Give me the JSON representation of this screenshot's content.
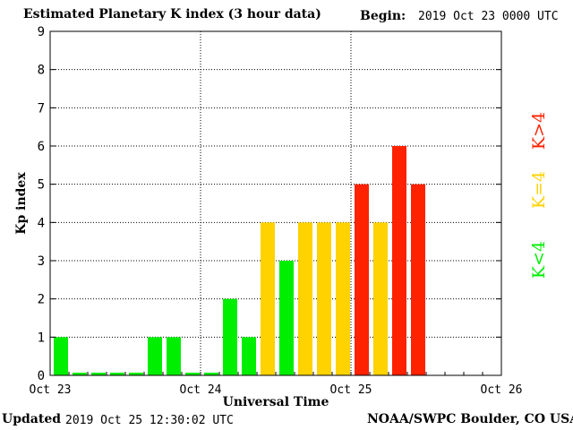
{
  "header": {
    "title": "Estimated Planetary K index (3 hour data)",
    "begin_label": "Begin:",
    "begin_value": "2019 Oct 23 0000 UTC"
  },
  "footer": {
    "updated_label": "Updated",
    "updated_value": "2019 Oct 25 12:30:02 UTC",
    "source": "NOAA/SWPC Boulder, CO USA"
  },
  "legend": {
    "low": "K<4",
    "mid": "K=4",
    "high": "K>4"
  },
  "colors": {
    "low": "#00ee00",
    "mid": "#ffd200",
    "high": "#ff2200",
    "grid": "#000000"
  },
  "chart_data": {
    "type": "bar",
    "title": "Estimated Planetary K index (3 hour data)",
    "xlabel": "Universal Time",
    "ylabel": "Kp index",
    "ylim": [
      0,
      9
    ],
    "yticks": [
      0,
      1,
      2,
      3,
      4,
      5,
      6,
      7,
      8,
      9
    ],
    "xtick_labels": [
      "Oct 23",
      "Oct 24",
      "Oct 25",
      "Oct 26"
    ],
    "grid": true,
    "values": [
      1,
      0,
      0,
      0,
      0,
      1,
      1,
      0,
      0,
      2,
      1,
      4,
      3,
      4,
      4,
      4,
      5,
      4,
      6,
      5
    ]
  }
}
